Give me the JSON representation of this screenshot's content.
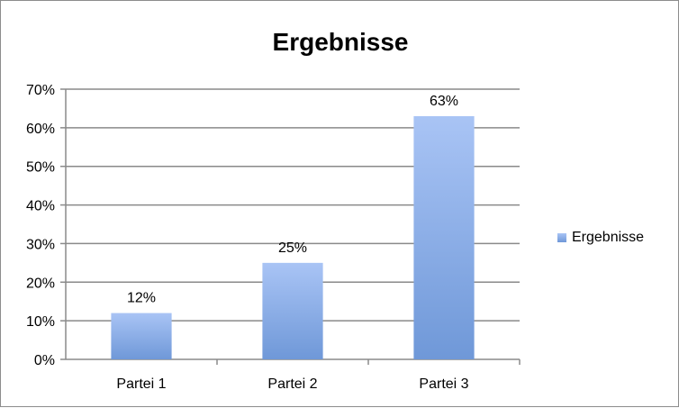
{
  "chart_data": {
    "type": "bar",
    "title": "Ergebnisse",
    "categories": [
      "Partei 1",
      "Partei 2",
      "Partei 3"
    ],
    "series": [
      {
        "name": "Ergebnisse",
        "values": [
          12,
          25,
          63
        ]
      }
    ],
    "data_labels": [
      "12%",
      "25%",
      "63%"
    ],
    "ylim": [
      0,
      70
    ],
    "yticks": [
      0,
      10,
      20,
      30,
      40,
      50,
      60,
      70
    ],
    "ytick_labels": [
      "0%",
      "10%",
      "20%",
      "30%",
      "40%",
      "50%",
      "60%",
      "70%"
    ],
    "grid": true,
    "legend_position": "right",
    "bar_color_top": "#a9c4f5",
    "bar_color_bottom": "#6f98d8"
  }
}
